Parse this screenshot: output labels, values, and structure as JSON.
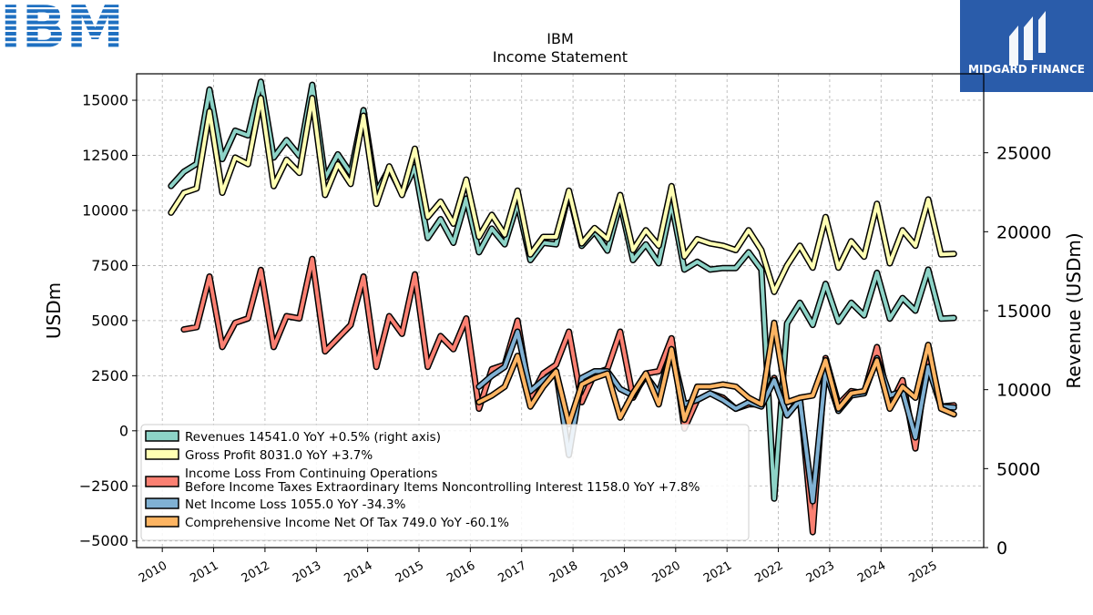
{
  "brand": {
    "logo_text": "IBM",
    "badge_text": "MIDGARD FINANCE",
    "badge_color": "#2a5caa",
    "logo_color": "#1f70c1"
  },
  "chart_data": {
    "type": "line",
    "title": "IBM",
    "subtitle": "Income Statement",
    "ylabel": "USDm",
    "ylabel_right": "Revenue (USDm)",
    "ylim": [
      -5300,
      16200
    ],
    "ylim_right": [
      0,
      30000
    ],
    "yticks": [
      -5000,
      -2500,
      0,
      2500,
      5000,
      7500,
      10000,
      12500,
      15000
    ],
    "yticks_right": [
      0,
      5000,
      10000,
      15000,
      20000,
      25000
    ],
    "xlim": [
      2009.5,
      2026.0
    ],
    "xticks": [
      2010,
      2011,
      2012,
      2013,
      2014,
      2015,
      2016,
      2017,
      2018,
      2019,
      2020,
      2021,
      2022,
      2023,
      2024,
      2025
    ],
    "grid": true,
    "legend_position": "lower-left",
    "series": [
      {
        "name": "Revenues  14541.0 YoY +0.5% (right axis)",
        "color": "#8dd3c7",
        "axis": "right",
        "x": [
          2010.17,
          2010.42,
          2010.67,
          2010.92,
          2011.17,
          2011.42,
          2011.67,
          2011.92,
          2012.17,
          2012.42,
          2012.67,
          2012.92,
          2013.17,
          2013.42,
          2013.67,
          2013.92,
          2014.17,
          2014.42,
          2014.67,
          2014.92,
          2015.17,
          2015.42,
          2015.67,
          2015.92,
          2016.17,
          2016.42,
          2016.67,
          2016.92,
          2017.17,
          2017.42,
          2017.67,
          2017.92,
          2018.17,
          2018.42,
          2018.67,
          2018.92,
          2019.17,
          2019.42,
          2019.67,
          2019.92,
          2020.17,
          2020.42,
          2020.67,
          2020.92,
          2021.17,
          2021.42,
          2021.67,
          2021.92,
          2022.17,
          2022.42,
          2022.67,
          2022.92,
          2023.17,
          2023.42,
          2023.67,
          2023.92,
          2024.17,
          2024.42,
          2024.67,
          2024.92,
          2025.17,
          2025.42
        ],
        "values": [
          22900,
          23800,
          24300,
          29000,
          24600,
          26400,
          26100,
          29500,
          24700,
          25800,
          24800,
          29300,
          23400,
          24900,
          23700,
          27700,
          22500,
          24000,
          22400,
          24100,
          19600,
          20800,
          19300,
          22100,
          18700,
          20200,
          19200,
          21800,
          18200,
          19300,
          19200,
          22500,
          19100,
          20000,
          18800,
          21800,
          18200,
          19200,
          18000,
          21800,
          17600,
          18100,
          17600,
          17700,
          17700,
          18700,
          17600,
          3100,
          14200,
          15500,
          14100,
          16700,
          14300,
          15500,
          14700,
          17400,
          14500,
          15800,
          15000,
          17600,
          14500,
          14541
        ]
      },
      {
        "name": "Gross Profit  8031.0 YoY +3.7%",
        "color": "#ffffb3",
        "axis": "left",
        "x": [
          2010.17,
          2010.42,
          2010.67,
          2010.92,
          2011.17,
          2011.42,
          2011.67,
          2011.92,
          2012.17,
          2012.42,
          2012.67,
          2012.92,
          2013.17,
          2013.42,
          2013.67,
          2013.92,
          2014.17,
          2014.42,
          2014.67,
          2014.92,
          2015.17,
          2015.42,
          2015.67,
          2015.92,
          2016.17,
          2016.42,
          2016.67,
          2016.92,
          2017.17,
          2017.42,
          2017.67,
          2017.92,
          2018.17,
          2018.42,
          2018.67,
          2018.92,
          2019.17,
          2019.42,
          2019.67,
          2019.92,
          2020.17,
          2020.42,
          2020.67,
          2020.92,
          2021.17,
          2021.42,
          2021.67,
          2021.92,
          2022.17,
          2022.42,
          2022.67,
          2022.92,
          2023.17,
          2023.42,
          2023.67,
          2023.92,
          2024.17,
          2024.42,
          2024.67,
          2024.92,
          2025.17,
          2025.42
        ],
        "values": [
          9900,
          10800,
          11000,
          14500,
          10800,
          12400,
          12100,
          15100,
          11100,
          12300,
          11700,
          15100,
          10700,
          12100,
          11200,
          14300,
          10300,
          12000,
          10700,
          12800,
          9700,
          10400,
          9400,
          11400,
          8800,
          9800,
          8900,
          10900,
          8000,
          8800,
          8800,
          10900,
          8500,
          9200,
          8700,
          10700,
          8200,
          9100,
          8400,
          11100,
          7900,
          8700,
          8500,
          8400,
          8200,
          9100,
          8200,
          6300,
          7500,
          8400,
          7400,
          9700,
          7400,
          8600,
          7900,
          10300,
          7600,
          9100,
          8400,
          10500,
          8000,
          8031
        ]
      },
      {
        "name": "Income Loss From Continuing Operations\nBefore Income Taxes Extraordinary Items Noncontrolling Interest  1158.0 YoY +7.8%",
        "color": "#fb8072",
        "axis": "left",
        "x": [
          2010.42,
          2010.67,
          2010.92,
          2011.17,
          2011.42,
          2011.67,
          2011.92,
          2012.17,
          2012.42,
          2012.67,
          2012.92,
          2013.17,
          2013.42,
          2013.67,
          2013.92,
          2014.17,
          2014.42,
          2014.67,
          2014.92,
          2015.17,
          2015.42,
          2015.67,
          2015.92,
          2016.17,
          2016.42,
          2016.67,
          2016.92,
          2017.17,
          2017.42,
          2017.67,
          2017.92,
          2018.17,
          2018.42,
          2018.67,
          2018.92,
          2019.17,
          2019.42,
          2019.67,
          2019.92,
          2020.17,
          2020.42,
          2020.67,
          2020.92,
          2021.17,
          2021.42,
          2021.67,
          2021.92,
          2022.17,
          2022.42,
          2022.67,
          2022.92,
          2023.17,
          2023.42,
          2023.67,
          2023.92,
          2024.17,
          2024.42,
          2024.67,
          2024.92,
          2025.17,
          2025.42
        ],
        "values": [
          4600,
          4700,
          7000,
          3800,
          4900,
          5100,
          7300,
          3800,
          5200,
          5100,
          7800,
          3600,
          4200,
          4800,
          7000,
          2900,
          5200,
          4400,
          7100,
          2900,
          4300,
          3700,
          5100,
          1000,
          2800,
          3000,
          5000,
          1500,
          2600,
          3000,
          4500,
          1300,
          2600,
          2800,
          4500,
          1500,
          2600,
          2700,
          4200,
          100,
          1400,
          1700,
          1500,
          1000,
          1200,
          1200,
          2400,
          700,
          1500,
          -4600,
          3300,
          1200,
          1800,
          1700,
          3800,
          1100,
          2300,
          -800,
          3600,
          1100,
          1158
        ]
      },
      {
        "name": "Net Income Loss  1055.0 YoY -34.3%",
        "color": "#80b1d3",
        "axis": "left",
        "x": [
          2016.17,
          2016.42,
          2016.67,
          2016.92,
          2017.17,
          2017.42,
          2017.67,
          2017.92,
          2018.17,
          2018.42,
          2018.67,
          2018.92,
          2019.17,
          2019.42,
          2019.67,
          2019.92,
          2020.17,
          2020.42,
          2020.67,
          2020.92,
          2021.17,
          2021.42,
          2021.67,
          2021.92,
          2022.17,
          2022.42,
          2022.67,
          2022.92,
          2023.17,
          2023.42,
          2023.67,
          2023.92,
          2024.17,
          2024.42,
          2024.67,
          2024.92,
          2025.17,
          2025.42
        ],
        "values": [
          2000,
          2500,
          2900,
          4500,
          1800,
          2300,
          2700,
          -1100,
          2400,
          2700,
          2700,
          1900,
          1600,
          2500,
          1700,
          3700,
          1200,
          1400,
          1700,
          1400,
          1000,
          1300,
          1100,
          2300,
          700,
          1400,
          -3200,
          2700,
          900,
          1600,
          1700,
          3300,
          1600,
          1800,
          -300,
          2900,
          1100,
          1055
        ]
      },
      {
        "name": "Comprehensive Income Net Of Tax  749.0 YoY -60.1%",
        "color": "#fdb462",
        "axis": "left",
        "x": [
          2016.17,
          2016.42,
          2016.67,
          2016.92,
          2017.17,
          2017.42,
          2017.67,
          2017.92,
          2018.17,
          2018.42,
          2018.67,
          2018.92,
          2019.17,
          2019.42,
          2019.67,
          2019.92,
          2020.17,
          2020.42,
          2020.67,
          2020.92,
          2021.17,
          2021.42,
          2021.67,
          2021.92,
          2022.17,
          2022.42,
          2022.67,
          2022.92,
          2023.17,
          2023.42,
          2023.67,
          2023.92,
          2024.17,
          2024.42,
          2024.67,
          2024.92,
          2025.17,
          2025.42
        ],
        "values": [
          1300,
          1600,
          2000,
          3400,
          1100,
          2000,
          2700,
          300,
          2100,
          2400,
          2600,
          600,
          1700,
          2600,
          1200,
          3700,
          500,
          2000,
          2000,
          2100,
          2000,
          1500,
          1200,
          4900,
          1300,
          1500,
          1600,
          3200,
          1000,
          1700,
          1800,
          3200,
          1000,
          2000,
          1500,
          3900,
          1000,
          749
        ]
      }
    ]
  }
}
